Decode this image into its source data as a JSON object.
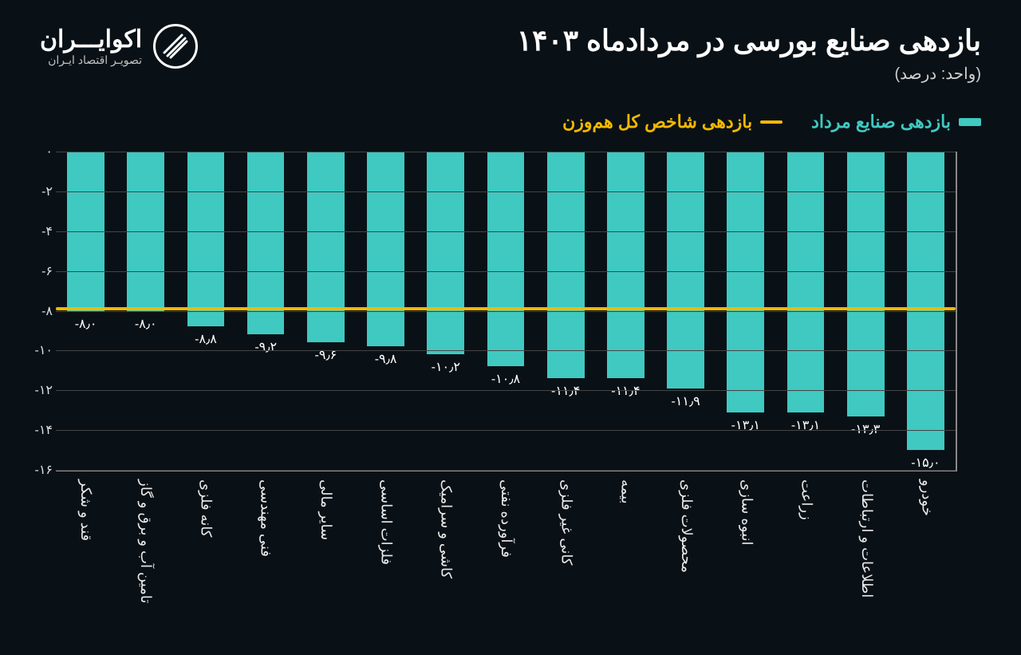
{
  "title": "بازدهی صنایع بورسی در مردادماه ۱۴۰۳",
  "subtitle": "(واحد: درصد)",
  "brand": {
    "name": "اکوایـــران",
    "tagline": "تصویـر اقتصاد ایـران"
  },
  "legend": {
    "series": "بازدهی صنایع مرداد",
    "ref": "بازدهی شاخص کل هم‌وزن"
  },
  "chart": {
    "type": "bar",
    "bar_color": "#3fc9c1",
    "ref_color": "#f2b900",
    "text_color": "#ffffff",
    "grid_color": "#444444",
    "background_color": "#0a1116",
    "ylim": [
      0,
      -16
    ],
    "yticks": [
      0,
      -2,
      -4,
      -6,
      -8,
      -10,
      -12,
      -14,
      -16
    ],
    "ytick_labels": [
      "۰",
      "-۲",
      "-۴",
      "-۶",
      "-۸",
      "-۱۰",
      "-۱۲",
      "-۱۴",
      "-۱۶"
    ],
    "ref_value": -7.9,
    "bar_width_pct": 62,
    "title_fontsize": 36,
    "label_fontsize": 18,
    "items": [
      {
        "label": "قند و شکر",
        "value": -8.0,
        "value_label": "-۸٫۰"
      },
      {
        "label": "تامین آب و برق و گاز",
        "value": -8.0,
        "value_label": "-۸٫۰"
      },
      {
        "label": "کانه فلزی",
        "value": -8.8,
        "value_label": "-۸٫۸"
      },
      {
        "label": "فنی مهندسی",
        "value": -9.2,
        "value_label": "-۹٫۲"
      },
      {
        "label": "سایر مالی",
        "value": -9.6,
        "value_label": "-۹٫۶"
      },
      {
        "label": "فلزات اساسی",
        "value": -9.8,
        "value_label": "-۹٫۸"
      },
      {
        "label": "کاشی و سرامیک",
        "value": -10.2,
        "value_label": "-۱۰٫۲"
      },
      {
        "label": "فرآورده نفتی",
        "value": -10.8,
        "value_label": "-۱۰٫۸"
      },
      {
        "label": "کانی غیر فلزی",
        "value": -11.4,
        "value_label": "-۱۱٫۴"
      },
      {
        "label": "بیمه",
        "value": -11.4,
        "value_label": "-۱۱٫۴"
      },
      {
        "label": "محصولات فلزی",
        "value": -11.9,
        "value_label": "-۱۱٫۹"
      },
      {
        "label": "انبوه سازی",
        "value": -13.1,
        "value_label": "-۱۳٫۱"
      },
      {
        "label": "زراعت",
        "value": -13.1,
        "value_label": "-۱۳٫۱"
      },
      {
        "label": "اطلاعات و ارتباطات",
        "value": -13.3,
        "value_label": "-۱۳٫۳"
      },
      {
        "label": "خودرو",
        "value": -15.0,
        "value_label": "-۱۵٫۰"
      }
    ]
  }
}
